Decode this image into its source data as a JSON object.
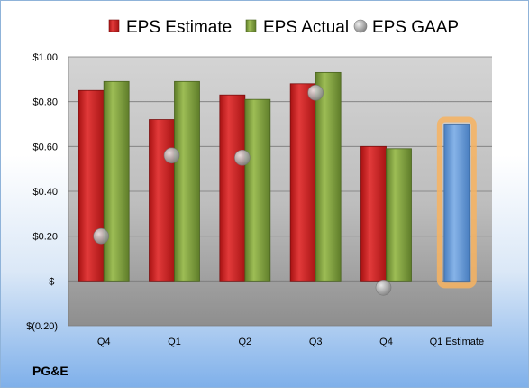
{
  "company": "PG&E",
  "chart_data": {
    "type": "bar",
    "categories": [
      "Q4",
      "Q1",
      "Q2",
      "Q3",
      "Q4",
      "Q1 Estimate"
    ],
    "series": [
      {
        "name": "EPS Estimate",
        "values": [
          0.85,
          0.72,
          0.83,
          0.88,
          0.6,
          null
        ],
        "color": "#d42a2a"
      },
      {
        "name": "EPS Actual",
        "values": [
          0.89,
          0.89,
          0.81,
          0.93,
          0.59,
          null
        ],
        "color": "#88aa40"
      },
      {
        "name": "EPS GAAP",
        "values": [
          0.2,
          0.56,
          0.55,
          0.84,
          -0.03,
          null
        ],
        "color": "#a5a5a5",
        "marker": "circle"
      },
      {
        "name": "",
        "values": [
          null,
          null,
          null,
          null,
          null,
          0.7
        ],
        "color": "#6b9fd8",
        "highlight": "#f7b360"
      }
    ],
    "y_ticks": [
      "$(0.20)",
      "$-",
      "$0.20",
      "$0.40",
      "$0.60",
      "$0.80",
      "$1.00"
    ],
    "ylim": [
      -0.2,
      1.0
    ],
    "grid": true,
    "legend_position": "top"
  }
}
